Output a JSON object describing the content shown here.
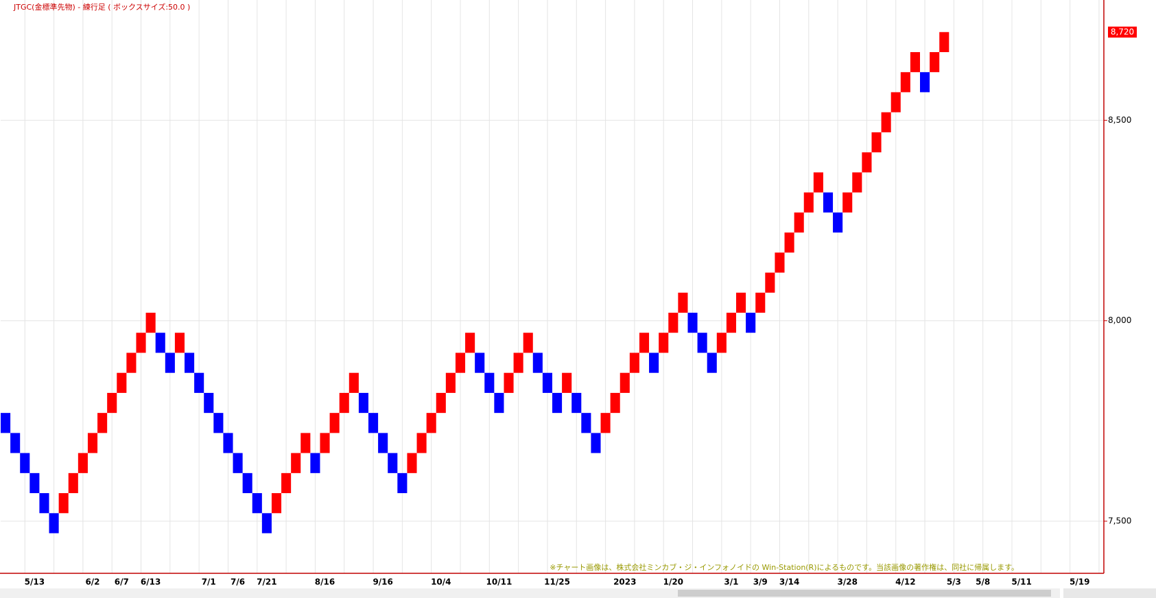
{
  "chart_data": {
    "type": "renko",
    "title": "JTGC(金標準先物) - 練行足 ( ボックスサイズ:50.0 )",
    "annotation": "※チャート画像は、株式会社ミンカブ・ジ・インフォノイドの Win-Station(R)によるものです。当該画像の著作権は、同社に帰属します。",
    "categories": [
      null,
      null,
      null,
      "5/13",
      null,
      null,
      null,
      null,
      null,
      "6/2",
      null,
      null,
      "6/7",
      null,
      null,
      "6/13",
      null,
      null,
      null,
      null,
      null,
      "7/1",
      null,
      null,
      "7/6",
      null,
      null,
      "7/21",
      null,
      null,
      null,
      null,
      null,
      "8/16",
      null,
      null,
      null,
      null,
      null,
      "9/16",
      null,
      null,
      null,
      null,
      null,
      "10/4",
      null,
      null,
      null,
      null,
      null,
      "10/11",
      null,
      null,
      null,
      null,
      null,
      "11/25",
      null,
      null,
      null,
      null,
      null,
      null,
      "2023",
      null,
      null,
      null,
      null,
      "1/20",
      null,
      null,
      null,
      null,
      null,
      "3/1",
      null,
      null,
      "3/9",
      null,
      null,
      "3/14",
      null,
      null,
      null,
      null,
      null,
      "3/28",
      null,
      null,
      null,
      null,
      null,
      "4/12",
      null,
      null,
      null,
      null,
      "5/3",
      null,
      null,
      "5/8",
      null,
      null,
      null,
      "5/11",
      null,
      null,
      null,
      null,
      null,
      "5/19",
      null,
      null
    ],
    "open": [
      7770,
      7720,
      7670,
      7620,
      7570,
      7520,
      7520,
      7570,
      7620,
      7670,
      7720,
      7770,
      7820,
      7870,
      7920,
      7970,
      7970,
      7920,
      7920,
      7920,
      7870,
      7820,
      7770,
      7720,
      7670,
      7620,
      7570,
      7520,
      7520,
      7570,
      7620,
      7670,
      7670,
      7670,
      7720,
      7770,
      7820,
      7820,
      7770,
      7720,
      7670,
      7620,
      7620,
      7670,
      7720,
      7770,
      7820,
      7870,
      7920,
      7920,
      7870,
      7820,
      7820,
      7870,
      7920,
      7920,
      7870,
      7820,
      7820,
      7820,
      7770,
      7720,
      7720,
      7770,
      7820,
      7870,
      7920,
      7920,
      7920,
      7970,
      8020,
      8020,
      7970,
      7920,
      7920,
      7970,
      8020,
      8020,
      8020,
      8070,
      8120,
      8170,
      8220,
      8270,
      8320,
      8320,
      8270,
      8270,
      8320,
      8370,
      8420,
      8470,
      8520,
      8570,
      8620,
      8620,
      8620,
      8670,
      null,
      null,
      null,
      null,
      null,
      null,
      null,
      null,
      null,
      null,
      null,
      null,
      null,
      null,
      null,
      null
    ],
    "close": [
      7720,
      7670,
      7620,
      7570,
      7520,
      7470,
      7570,
      7620,
      7670,
      7720,
      7770,
      7820,
      7870,
      7920,
      7970,
      8020,
      7920,
      7870,
      7970,
      7870,
      7820,
      7770,
      7720,
      7670,
      7620,
      7570,
      7520,
      7470,
      7570,
      7620,
      7670,
      7720,
      7620,
      7720,
      7770,
      7820,
      7870,
      7770,
      7720,
      7670,
      7620,
      7570,
      7670,
      7720,
      7770,
      7820,
      7870,
      7920,
      7970,
      7870,
      7820,
      7770,
      7870,
      7920,
      7970,
      7870,
      7820,
      7770,
      7870,
      7770,
      7720,
      7670,
      7770,
      7820,
      7870,
      7920,
      7970,
      7870,
      7970,
      8020,
      8070,
      7970,
      7920,
      7870,
      7970,
      8020,
      8070,
      7970,
      8070,
      8120,
      8170,
      8220,
      8270,
      8320,
      8370,
      8270,
      8220,
      8320,
      8370,
      8420,
      8470,
      8520,
      8570,
      8620,
      8670,
      8570,
      8670,
      8720,
      null,
      null,
      null,
      null,
      null,
      null,
      null,
      null,
      null,
      null,
      null,
      null,
      null,
      null,
      null,
      null
    ],
    "up_color": "#ff0000",
    "down_color": "#0000ff",
    "ylim": [
      7370,
      8800
    ],
    "yticks": [
      {
        "value": 7500,
        "label": "7,500"
      },
      {
        "value": 8000,
        "label": "8,000"
      },
      {
        "value": 8500,
        "label": "8,500"
      }
    ],
    "last_price": {
      "value": 8720,
      "label": "8,720"
    },
    "grid": true
  }
}
